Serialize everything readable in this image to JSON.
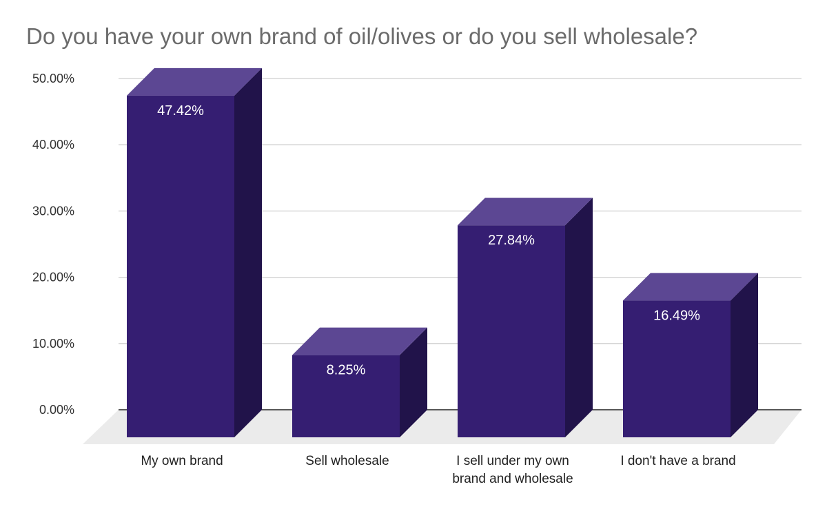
{
  "chart_data": {
    "type": "bar",
    "title": "Do you have your own brand of oil/olives or do you sell wholesale?",
    "xlabel": "",
    "ylabel": "",
    "categories": [
      [
        "My own brand"
      ],
      [
        "Sell wholesale"
      ],
      [
        "I sell under my own",
        "brand and wholesale"
      ],
      [
        "I don't have a brand"
      ]
    ],
    "values": [
      47.42,
      8.25,
      27.84,
      16.49
    ],
    "data_labels": [
      "47.42%",
      "8.25%",
      "27.84%",
      "16.49%"
    ],
    "ylim": [
      0,
      50
    ],
    "yticks": [
      0,
      10,
      20,
      30,
      40,
      50
    ],
    "ytick_labels": [
      "0.00%",
      "10.00%",
      "20.00%",
      "30.00%",
      "40.00%",
      "50.00%"
    ],
    "grid": true,
    "style": "3d-column",
    "colors": {
      "bar_front": "#351e72",
      "bar_top": "#5c4793",
      "bar_side": "#21134a",
      "floor": "#ebebeb",
      "grid": "#cfcfcf",
      "axis": "#222222",
      "title": "#6b6b6b"
    }
  }
}
